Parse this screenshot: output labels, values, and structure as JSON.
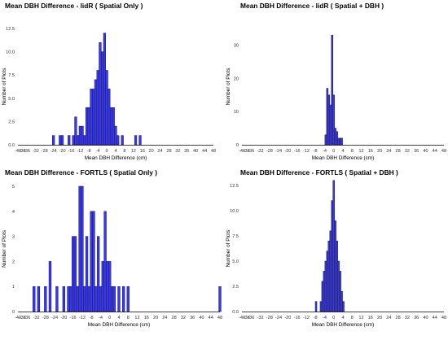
{
  "chart_data": [
    {
      "type": "bar",
      "title": "Mean DBH Difference - lidR ( Spatial Only )",
      "xlabel": "Mean DBH Difference (cm)",
      "ylabel": "Number of Plots",
      "xlim": [
        -40,
        48
      ],
      "ylim": [
        0,
        12.5
      ],
      "xticks": [
        "-40",
        "-38",
        "-36",
        "-32",
        "-28",
        "-24",
        "-20",
        "-16",
        "-12",
        "-8",
        "-4",
        "0",
        "4",
        "8",
        "12",
        "16",
        "20",
        "24",
        "28",
        "32",
        "36",
        "40",
        "44",
        "48"
      ],
      "yticks": [
        "0.0",
        "2.5",
        "5.0",
        "7.5",
        "10.0",
        "12.5"
      ],
      "bin_width": 1,
      "bins": [
        {
          "x": -24,
          "count": 1
        },
        {
          "x": -21,
          "count": 1
        },
        {
          "x": -20,
          "count": 1
        },
        {
          "x": -17,
          "count": 1
        },
        {
          "x": -15,
          "count": 1
        },
        {
          "x": -14,
          "count": 3
        },
        {
          "x": -13,
          "count": 1
        },
        {
          "x": -12,
          "count": 2
        },
        {
          "x": -11,
          "count": 2
        },
        {
          "x": -10,
          "count": 1
        },
        {
          "x": -9,
          "count": 4
        },
        {
          "x": -8,
          "count": 4
        },
        {
          "x": -7,
          "count": 6
        },
        {
          "x": -6,
          "count": 6
        },
        {
          "x": -5,
          "count": 7
        },
        {
          "x": -4,
          "count": 8
        },
        {
          "x": -3,
          "count": 11
        },
        {
          "x": -2,
          "count": 10
        },
        {
          "x": -1,
          "count": 12
        },
        {
          "x": 0,
          "count": 8
        },
        {
          "x": 1,
          "count": 6
        },
        {
          "x": 2,
          "count": 4
        },
        {
          "x": 3,
          "count": 4
        },
        {
          "x": 4,
          "count": 2
        },
        {
          "x": 5,
          "count": 1
        },
        {
          "x": 7,
          "count": 1
        },
        {
          "x": 13,
          "count": 1
        },
        {
          "x": 15,
          "count": 1
        }
      ]
    },
    {
      "type": "bar",
      "title": "Mean DBH Difference - lidR ( Spatial + DBH )",
      "xlabel": "Mean DBH Difference (cm)",
      "ylabel": "Number of Plots",
      "xlim": [
        -40,
        48
      ],
      "ylim": [
        0,
        35
      ],
      "xticks": [
        "-40",
        "-38",
        "-36",
        "-32",
        "-28",
        "-24",
        "-20",
        "-16",
        "-12",
        "-8",
        "-4",
        "0",
        "4",
        "8",
        "12",
        "16",
        "20",
        "24",
        "28",
        "32",
        "36",
        "40",
        "44",
        "48"
      ],
      "yticks": [
        "0",
        "10",
        "20",
        "30"
      ],
      "bin_width": 0.7,
      "bins": [
        {
          "x": -3.5,
          "count": 3
        },
        {
          "x": -2.8,
          "count": 17
        },
        {
          "x": -2.1,
          "count": 15
        },
        {
          "x": -1.4,
          "count": 12
        },
        {
          "x": -0.7,
          "count": 33
        },
        {
          "x": 0,
          "count": 15
        },
        {
          "x": 0.7,
          "count": 5
        },
        {
          "x": 1.4,
          "count": 4
        },
        {
          "x": 2.1,
          "count": 2
        },
        {
          "x": 2.8,
          "count": 2
        },
        {
          "x": 3.5,
          "count": 2
        }
      ]
    },
    {
      "type": "bar",
      "title": "Mean DBH Difference - FORTLS ( Spatial Only )",
      "xlabel": "Mean DBH Difference (cm)",
      "ylabel": "Number of Plots",
      "xlim": [
        -40,
        48
      ],
      "ylim": [
        0,
        5
      ],
      "xticks": [
        "-40",
        "-38",
        "-36",
        "-32",
        "-28",
        "-24",
        "-20",
        "-16",
        "-12",
        "-8",
        "-4",
        "0",
        "4",
        "8",
        "12",
        "16",
        "20",
        "24",
        "28",
        "32",
        "36",
        "40",
        "44",
        "48"
      ],
      "yticks": [
        "0",
        "1",
        "2",
        "3",
        "4",
        "5"
      ],
      "bin_width": 1,
      "bins": [
        {
          "x": -33,
          "count": 1
        },
        {
          "x": -31,
          "count": 1
        },
        {
          "x": -28,
          "count": 1
        },
        {
          "x": -26,
          "count": 2
        },
        {
          "x": -23,
          "count": 1
        },
        {
          "x": -20,
          "count": 1
        },
        {
          "x": -18,
          "count": 1
        },
        {
          "x": -17,
          "count": 1
        },
        {
          "x": -16,
          "count": 3
        },
        {
          "x": -15,
          "count": 3
        },
        {
          "x": -14,
          "count": 1
        },
        {
          "x": -13,
          "count": 5
        },
        {
          "x": -12,
          "count": 5
        },
        {
          "x": -11,
          "count": 1
        },
        {
          "x": -10,
          "count": 3
        },
        {
          "x": -9,
          "count": 1
        },
        {
          "x": -8,
          "count": 4
        },
        {
          "x": -7,
          "count": 4
        },
        {
          "x": -6,
          "count": 1
        },
        {
          "x": -5,
          "count": 3
        },
        {
          "x": -4,
          "count": 1
        },
        {
          "x": -3,
          "count": 2
        },
        {
          "x": -2,
          "count": 4
        },
        {
          "x": -1,
          "count": 2
        },
        {
          "x": 0,
          "count": 2
        },
        {
          "x": 1,
          "count": 1
        },
        {
          "x": 2,
          "count": 1
        },
        {
          "x": 4,
          "count": 1
        },
        {
          "x": 6,
          "count": 1
        },
        {
          "x": 8,
          "count": 1
        },
        {
          "x": 48,
          "count": 1
        }
      ]
    },
    {
      "type": "bar",
      "title": "Mean DBH Difference - FORTLS ( Spatial + DBH )",
      "xlabel": "Mean DBH Difference (cm)",
      "ylabel": "Number of Plots",
      "xlim": [
        -40,
        48
      ],
      "ylim": [
        0,
        12.5
      ],
      "xticks": [
        "-40",
        "-38",
        "-36",
        "-32",
        "-28",
        "-24",
        "-20",
        "-16",
        "-12",
        "-8",
        "-4",
        "0",
        "4",
        "8",
        "12",
        "16",
        "20",
        "24",
        "28",
        "32",
        "36",
        "40",
        "44",
        "48"
      ],
      "yticks": [
        "0.0",
        "2.5",
        "5.0",
        "7.5",
        "10.0",
        "12.5"
      ],
      "bin_width": 0.7,
      "bins": [
        {
          "x": -7.7,
          "count": 1
        },
        {
          "x": -5.6,
          "count": 1
        },
        {
          "x": -4.9,
          "count": 3
        },
        {
          "x": -4.2,
          "count": 4
        },
        {
          "x": -3.5,
          "count": 5
        },
        {
          "x": -2.8,
          "count": 6
        },
        {
          "x": -2.1,
          "count": 7
        },
        {
          "x": -1.4,
          "count": 8
        },
        {
          "x": -0.7,
          "count": 11
        },
        {
          "x": 0,
          "count": 13
        },
        {
          "x": 0.7,
          "count": 9
        },
        {
          "x": 1.4,
          "count": 7
        },
        {
          "x": 2.1,
          "count": 5
        },
        {
          "x": 2.8,
          "count": 4
        },
        {
          "x": 3.5,
          "count": 2
        },
        {
          "x": 4.2,
          "count": 1
        }
      ]
    }
  ]
}
